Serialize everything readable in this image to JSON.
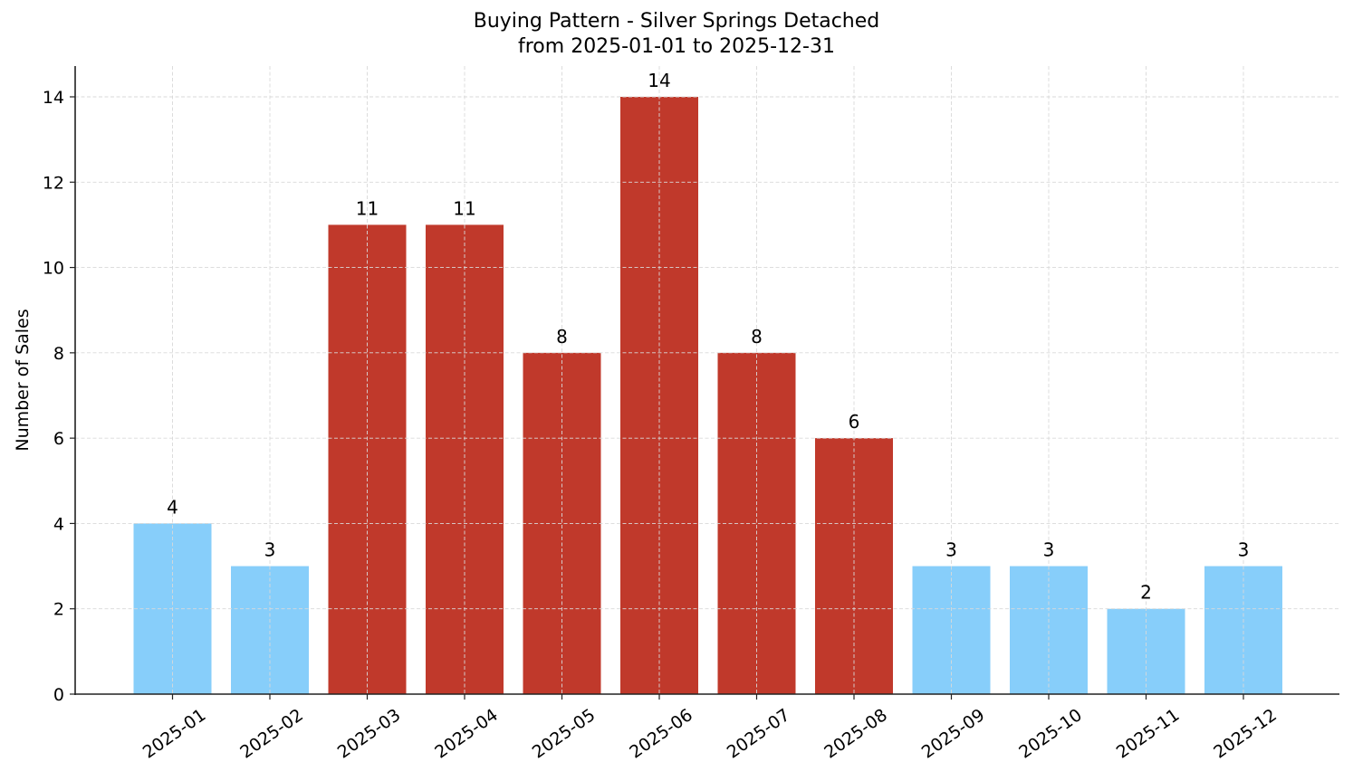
{
  "chart_data": {
    "type": "bar",
    "title": "Buying Pattern - Silver Springs Detached",
    "subtitle": "from 2025-01-01 to 2025-12-31",
    "xlabel": "",
    "ylabel": "Number of Sales",
    "categories": [
      "2025-01",
      "2025-02",
      "2025-03",
      "2025-04",
      "2025-05",
      "2025-06",
      "2025-07",
      "2025-08",
      "2025-09",
      "2025-10",
      "2025-11",
      "2025-12"
    ],
    "values": [
      4,
      3,
      11,
      11,
      8,
      14,
      8,
      6,
      3,
      3,
      2,
      3
    ],
    "bar_colors": [
      "#87CEFA",
      "#87CEFA",
      "#C0392B",
      "#C0392B",
      "#C0392B",
      "#C0392B",
      "#C0392B",
      "#C0392B",
      "#87CEFA",
      "#87CEFA",
      "#87CEFA",
      "#87CEFA"
    ],
    "data_labels": [
      "4",
      "3",
      "11",
      "11",
      "8",
      "14",
      "8",
      "6",
      "3",
      "3",
      "2",
      "3"
    ],
    "ylim": [
      0,
      14.7
    ],
    "yticks": [
      0,
      2,
      4,
      6,
      8,
      10,
      12,
      14
    ],
    "grid": true,
    "legend": null,
    "xtick_rotation": 35
  },
  "colors": {
    "peak": "#C0392B",
    "offpeak": "#87CEFA",
    "grid": "#d9d9d9",
    "axis": "#222222"
  }
}
